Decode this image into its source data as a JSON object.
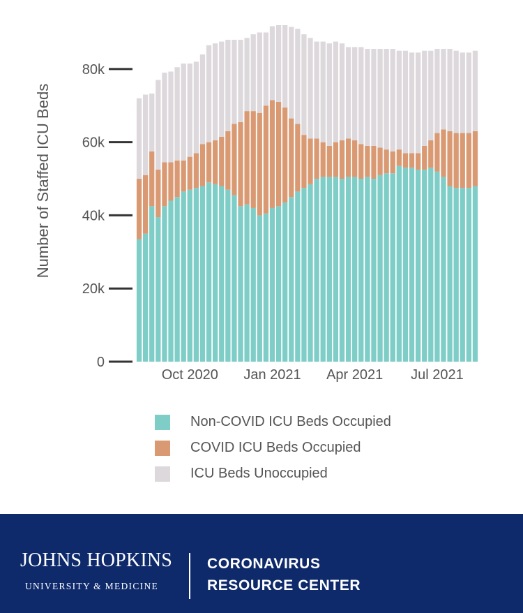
{
  "chart_data": {
    "type": "bar",
    "stacked": true,
    "ylabel": "Number of Staffed ICU Beds",
    "ylim": [
      0,
      92000
    ],
    "y_ticks": [
      0,
      20000,
      40000,
      60000,
      80000
    ],
    "y_tick_labels": [
      "0",
      "20k",
      "40k",
      "60k",
      "80k"
    ],
    "x_tick_labels": [
      "Oct 2020",
      "Jan 2021",
      "Apr 2021",
      "Jul 2021"
    ],
    "x_tick_bar_index": [
      8,
      21,
      34,
      47
    ],
    "categories": [
      "w1",
      "w2",
      "w3",
      "w4",
      "w5",
      "w6",
      "w7",
      "w8",
      "w9",
      "w10",
      "w11",
      "w12",
      "w13",
      "w14",
      "w15",
      "w16",
      "w17",
      "w18",
      "w19",
      "w20",
      "w21",
      "w22",
      "w23",
      "w24",
      "w25",
      "w26",
      "w27",
      "w28",
      "w29",
      "w30",
      "w31",
      "w32",
      "w33",
      "w34",
      "w35",
      "w36",
      "w37",
      "w38",
      "w39",
      "w40",
      "w41",
      "w42",
      "w43",
      "w44",
      "w45",
      "w46",
      "w47",
      "w48",
      "w49",
      "w50",
      "w51",
      "w52",
      "w53",
      "w54"
    ],
    "series": [
      {
        "name": "Non-COVID ICU Beds Occupied",
        "color": "#7ecdc7",
        "values": [
          33500,
          35000,
          42500,
          39500,
          42500,
          44000,
          45000,
          46500,
          47000,
          47500,
          48000,
          49000,
          48500,
          48000,
          47000,
          45500,
          42500,
          43000,
          42000,
          40000,
          40500,
          42000,
          42500,
          43500,
          45000,
          46500,
          47500,
          48500,
          50000,
          50500,
          50500,
          50500,
          50000,
          50500,
          50500,
          50000,
          50500,
          50000,
          51000,
          51500,
          51500,
          53500,
          53000,
          53000,
          52500,
          52500,
          53000,
          52000,
          50500,
          48000,
          47500,
          47500,
          47500,
          48000
        ]
      },
      {
        "name": "COVID ICU Beds Occupied",
        "color": "#d99a73",
        "values": [
          16500,
          16000,
          15000,
          13000,
          12000,
          10500,
          10000,
          8500,
          9000,
          9500,
          11500,
          11000,
          12000,
          13500,
          16000,
          19500,
          23000,
          25500,
          26500,
          28000,
          29500,
          29500,
          28500,
          26000,
          21500,
          18500,
          14500,
          12500,
          11000,
          9500,
          8500,
          9500,
          10500,
          10500,
          10000,
          9500,
          8500,
          9000,
          7500,
          6500,
          6000,
          4500,
          4000,
          4000,
          4500,
          6500,
          7500,
          10500,
          13000,
          15000,
          15000,
          15000,
          15000,
          15000
        ]
      },
      {
        "name": "ICU Beds Unoccupied",
        "color": "#ddd8dc",
        "values": [
          22000,
          22000,
          15800,
          24500,
          24500,
          24800,
          25500,
          26500,
          25500,
          25000,
          24500,
          26500,
          26500,
          26000,
          25000,
          23000,
          22500,
          20000,
          21000,
          22000,
          20000,
          20200,
          21000,
          22500,
          25000,
          26000,
          27500,
          27500,
          26500,
          27500,
          28000,
          27500,
          26500,
          25000,
          25500,
          26500,
          26500,
          26500,
          27000,
          27500,
          28000,
          27000,
          28000,
          27500,
          27500,
          26000,
          24500,
          23000,
          22000,
          22500,
          22500,
          22000,
          22000,
          22000
        ]
      }
    ]
  },
  "legend": {
    "items": [
      {
        "label": "Non-COVID ICU Beds Occupied",
        "color": "#7ecdc7"
      },
      {
        "label": "COVID ICU Beds Occupied",
        "color": "#d99a73"
      },
      {
        "label": "ICU Beds Unoccupied",
        "color": "#ddd8dc"
      }
    ]
  },
  "footer": {
    "brand_name": "JOHNS HOPKINS",
    "brand_sub": "UNIVERSITY & MEDICINE",
    "crc_line1": "CORONAVIRUS",
    "crc_line2": "RESOURCE CENTER",
    "bg_color": "#0e2a6b"
  }
}
